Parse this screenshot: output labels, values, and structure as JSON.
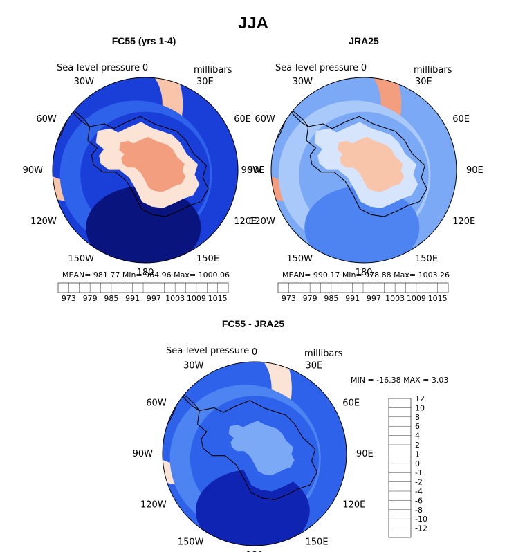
{
  "figure": {
    "title": "JJA"
  },
  "maps": [
    {
      "title": "FC55 (yrs 1-4)",
      "variable": "Sea-level pressure",
      "units": "millibars",
      "stats": "MEAN= 981.77   Min= 964.96   Max= 1000.06",
      "palette": [
        "#0a147e",
        "#1024b4",
        "#1a3fd8",
        "#2e62ea",
        "#4d84f2",
        "#7ba9f6",
        "#a9c9fa",
        "#d6e5fb",
        "#fbe3d6",
        "#f8c4aa",
        "#f49e80",
        "#ef7556",
        "#e5492e",
        "#c92817",
        "#a3140c",
        "#7c0703"
      ],
      "field": {
        "interior": 2,
        "icecap": 10,
        "southTrough": 0,
        "outerRing": 9
      },
      "colorbar": {
        "tick_labels": [
          "973",
          "979",
          "985",
          "991",
          "997",
          "1003",
          "1009",
          "1015"
        ]
      }
    },
    {
      "title": "JRA25",
      "variable": "Sea-level pressure",
      "units": "millibars",
      "stats": "MEAN= 990.17   Min= 978.88   Max= 1003.26",
      "palette": [
        "#0a147e",
        "#1024b4",
        "#1a3fd8",
        "#2e62ea",
        "#4d84f2",
        "#7ba9f6",
        "#a9c9fa",
        "#d6e5fb",
        "#fbe3d6",
        "#f8c4aa",
        "#f49e80",
        "#ef7556",
        "#e5492e",
        "#c92817",
        "#a3140c",
        "#7c0703"
      ],
      "field": {
        "interior": 5,
        "icecap": 9,
        "southTrough": 4,
        "outerRing": 10
      },
      "colorbar": {
        "tick_labels": [
          "973",
          "979",
          "985",
          "991",
          "997",
          "1003",
          "1009",
          "1015"
        ]
      }
    },
    {
      "title": "FC55 - JRA25",
      "variable": "Sea-level pressure",
      "units": "millibars",
      "stats": "MIN = -16.38 MAX =    3.03",
      "palette": [
        "#0a147e",
        "#1024b4",
        "#1a3fd8",
        "#2e62ea",
        "#4d84f2",
        "#7ba9f6",
        "#a9c9fa",
        "#d6e5fb",
        "#fbe3d6",
        "#f8c4aa",
        "#f49e80",
        "#ef7556",
        "#e5492e",
        "#c92817",
        "#a3140c"
      ],
      "field": {
        "interior": 3,
        "icecap": 5,
        "southTrough": 1,
        "outerRing": 8
      },
      "colorbar": {
        "tick_labels": [
          "-12",
          "-10",
          "-8",
          "-6",
          "-4",
          "-2",
          "-1",
          "0",
          "1",
          "2",
          "4",
          "6",
          "8",
          "10",
          "12"
        ]
      }
    }
  ],
  "map_labels": {
    "lon_0": "0",
    "lon_30E": "30E",
    "lon_60E": "60E",
    "lon_90E": "90E",
    "lon_120E": "120E",
    "lon_150E": "150E",
    "lon_180": "180",
    "lon_150W": "150W",
    "lon_120W": "120W",
    "lon_90W": "90W",
    "lon_60W": "60W",
    "lon_30W": "30W"
  },
  "colors": {
    "coastline": "#000000",
    "border": "#000000"
  }
}
